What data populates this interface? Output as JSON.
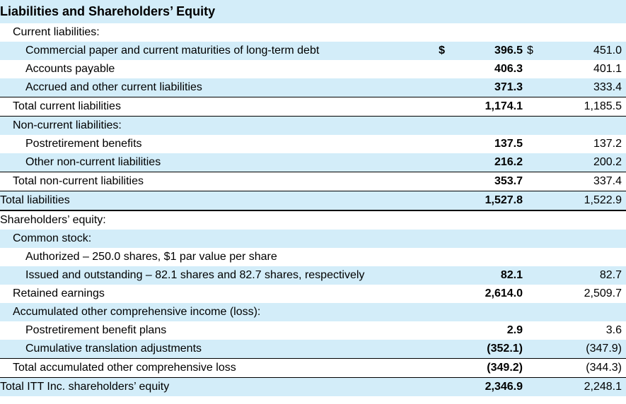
{
  "colors": {
    "shade": "#d3edf9",
    "text": "#000000",
    "border": "#000000"
  },
  "header": "Liabilities and Shareholders’ Equity",
  "rows": {
    "cur_liab_h": "Current liabilities:",
    "cp": {
      "label": "Commercial paper and current maturities of long-term debt",
      "c1": "$",
      "v1": "396.5",
      "c2": "$",
      "v2": "451.0"
    },
    "ap": {
      "label": "Accounts payable",
      "v1": "406.3",
      "v2": "401.1"
    },
    "acc": {
      "label": "Accrued and other current liabilities",
      "v1": "371.3",
      "v2": "333.4"
    },
    "tcl": {
      "label": "Total current liabilities",
      "v1": "1,174.1",
      "v2": "1,185.5"
    },
    "ncl_h": "Non-current liabilities:",
    "prb": {
      "label": "Postretirement benefits",
      "v1": "137.5",
      "v2": "137.2"
    },
    "oncl": {
      "label": "Other non-current liabilities",
      "v1": "216.2",
      "v2": "200.2"
    },
    "tncl": {
      "label": "Total non-current liabilities",
      "v1": "353.7",
      "v2": "337.4"
    },
    "tl": {
      "label": "Total liabilities",
      "v1": "1,527.8",
      "v2": "1,522.9"
    },
    "se_h": "Shareholders’ equity:",
    "cs_h": "Common stock:",
    "auth": {
      "label": "Authorized – 250.0 shares, $1 par value per share"
    },
    "iss": {
      "label": "Issued and outstanding – 82.1 shares and 82.7 shares, respectively",
      "v1": "82.1",
      "v2": "82.7"
    },
    "re": {
      "label": "Retained earnings",
      "v1": "2,614.0",
      "v2": "2,509.7"
    },
    "aoci_h": "Accumulated other comprehensive income (loss):",
    "pbp": {
      "label": "Postretirement benefit plans",
      "v1": "2.9",
      "v2": "3.6"
    },
    "cta": {
      "label": "Cumulative translation adjustments",
      "v1": "(352.1)",
      "v2": "(347.9)"
    },
    "tacl": {
      "label": "Total accumulated other comprehensive loss",
      "v1": "(349.2)",
      "v2": "(344.3)"
    },
    "tse": {
      "label": "Total ITT Inc. shareholders’ equity",
      "v1": "2,346.9",
      "v2": "2,248.1"
    }
  }
}
